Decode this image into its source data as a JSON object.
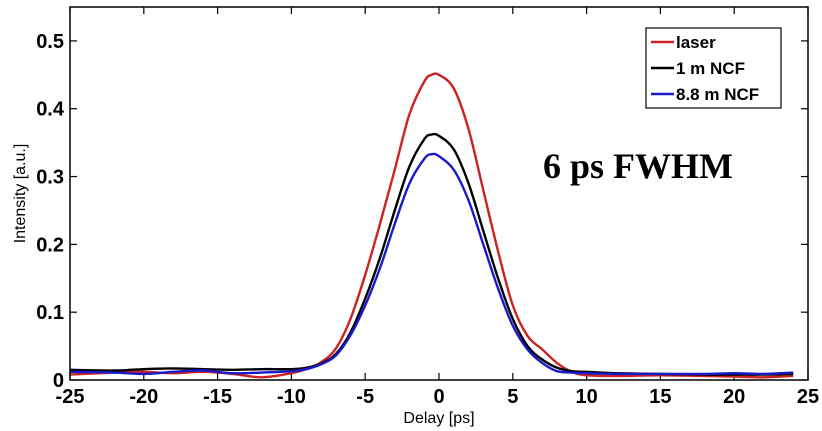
{
  "chart_data": {
    "type": "line",
    "title": "",
    "xlabel": "Delay [ps]",
    "ylabel": "Intensity [a.u.]",
    "xlim": [
      -25,
      25
    ],
    "ylim": [
      0,
      0.55
    ],
    "x_ticks": [
      -25,
      -20,
      -15,
      -10,
      -5,
      0,
      5,
      10,
      15,
      20,
      25
    ],
    "x_tick_labels": [
      "-25",
      "-20",
      "-15",
      "-10",
      "-5",
      "0",
      "5",
      "10",
      "15",
      "20",
      "25"
    ],
    "y_ticks": [
      0,
      0.1,
      0.2,
      0.3,
      0.4,
      0.5
    ],
    "y_tick_labels": [
      "0",
      "0.1",
      "0.2",
      "0.3",
      "0.4",
      "0.5"
    ],
    "grid": false,
    "legend_position": "top-right",
    "annotation": "6 ps FWHM",
    "series": [
      {
        "name": "laser",
        "color": "#cc2222",
        "x": [
          -25,
          -22,
          -20,
          -18,
          -16,
          -14,
          -12,
          -10,
          -9,
          -8,
          -7,
          -6,
          -5,
          -4,
          -3,
          -2,
          -1,
          -0.5,
          0,
          1,
          2,
          3,
          4,
          5,
          6,
          7,
          8,
          9,
          10,
          12,
          15,
          18,
          20,
          22,
          24
        ],
        "y": [
          0.008,
          0.011,
          0.012,
          0.01,
          0.012,
          0.009,
          0.004,
          0.01,
          0.016,
          0.026,
          0.046,
          0.09,
          0.155,
          0.23,
          0.31,
          0.392,
          0.44,
          0.45,
          0.45,
          0.43,
          0.37,
          0.28,
          0.19,
          0.11,
          0.065,
          0.045,
          0.025,
          0.012,
          0.007,
          0.006,
          0.007,
          0.006,
          0.005,
          0.004,
          0.006
        ]
      },
      {
        "name": "1 m NCF",
        "color": "#000000",
        "x": [
          -25,
          -22,
          -20,
          -18,
          -16,
          -14,
          -12,
          -10,
          -9,
          -8,
          -7,
          -6,
          -5,
          -4,
          -3,
          -2,
          -1,
          -0.5,
          0,
          1,
          2,
          3,
          4,
          5,
          6,
          7,
          8,
          9,
          10,
          12,
          15,
          18,
          20,
          22,
          24
        ],
        "y": [
          0.015,
          0.014,
          0.016,
          0.017,
          0.016,
          0.015,
          0.016,
          0.016,
          0.018,
          0.024,
          0.038,
          0.07,
          0.12,
          0.18,
          0.25,
          0.315,
          0.355,
          0.362,
          0.36,
          0.34,
          0.29,
          0.22,
          0.15,
          0.09,
          0.05,
          0.03,
          0.018,
          0.013,
          0.012,
          0.01,
          0.009,
          0.008,
          0.008,
          0.008,
          0.009
        ]
      },
      {
        "name": "8.8 m NCF",
        "color": "#1a1acc",
        "x": [
          -25,
          -22,
          -20,
          -18,
          -16,
          -14,
          -12,
          -10,
          -9,
          -8,
          -7,
          -6,
          -5,
          -4,
          -3,
          -2,
          -1,
          -0.5,
          0,
          1,
          2,
          3,
          4,
          5,
          6,
          7,
          8,
          9,
          10,
          12,
          15,
          18,
          20,
          22,
          24
        ],
        "y": [
          0.012,
          0.011,
          0.009,
          0.012,
          0.014,
          0.01,
          0.011,
          0.013,
          0.016,
          0.023,
          0.036,
          0.066,
          0.11,
          0.165,
          0.23,
          0.29,
          0.326,
          0.333,
          0.33,
          0.31,
          0.265,
          0.2,
          0.135,
          0.08,
          0.045,
          0.025,
          0.013,
          0.011,
          0.01,
          0.009,
          0.009,
          0.009,
          0.01,
          0.009,
          0.011
        ]
      }
    ]
  }
}
